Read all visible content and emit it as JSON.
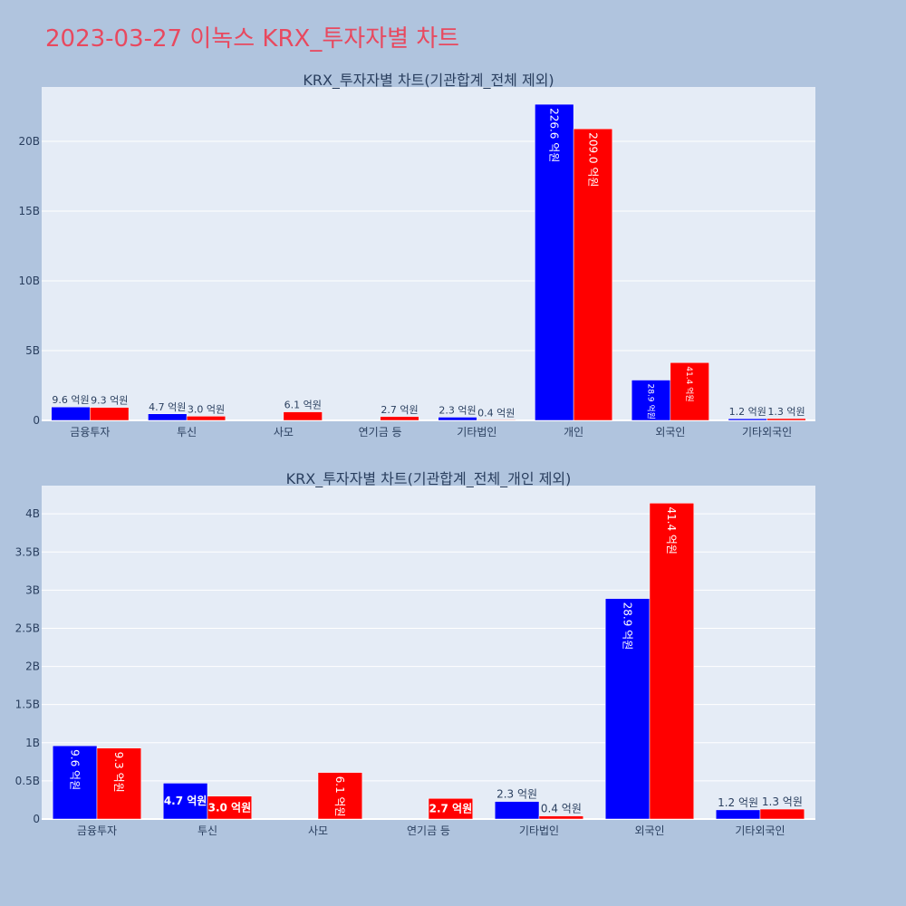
{
  "page": {
    "title": "2023-03-27 이녹스 KRX_투자자별 차트"
  },
  "colors": {
    "buy": "#0000ff",
    "sell": "#ff0000",
    "plot_bg": "#e5ecf6",
    "page_bg": "#b0c4de"
  },
  "chart_data": [
    {
      "type": "bar",
      "title": "KRX_투자자별 차트(기관합계_전체 제외)",
      "categories": [
        "금융투자",
        "투신",
        "사모",
        "연기금 등",
        "기타법인",
        "개인",
        "외국인",
        "기타외국인"
      ],
      "series": [
        {
          "values": [
            0.96,
            0.47,
            0,
            0,
            0.23,
            22.66,
            2.89,
            0.12
          ],
          "labels": [
            "9.6 억원",
            "4.7 억원",
            "",
            "",
            "2.3 억원",
            "226.6 억원",
            "28.9 억원",
            "1.2 억원"
          ]
        },
        {
          "values": [
            0.93,
            0.3,
            0.61,
            0.27,
            0.04,
            20.9,
            4.14,
            0.13
          ],
          "labels": [
            "9.3 억원",
            "3.0 억원",
            "6.1 억원",
            "2.7 억원",
            "0.4 억원",
            "209.0 억원",
            "41.4 억원",
            "1.3 억원"
          ]
        }
      ],
      "yticks": [
        0,
        5,
        10,
        15,
        20
      ],
      "ytick_labels": [
        "0",
        "5B",
        "10B",
        "15B",
        "20B"
      ],
      "ylim": [
        0,
        23.9
      ],
      "grid": true
    },
    {
      "type": "bar",
      "title": "KRX_투자자별 차트(기관합계_전체_개인 제외)",
      "categories": [
        "금융투자",
        "투신",
        "사모",
        "연기금 등",
        "기타법인",
        "외국인",
        "기타외국인"
      ],
      "series": [
        {
          "values": [
            0.96,
            0.47,
            0,
            0,
            0.23,
            2.89,
            0.12
          ],
          "labels": [
            "9.6 억원",
            "4.7 억원",
            "",
            "",
            "2.3 억원",
            "28.9 억원",
            "1.2 억원"
          ]
        },
        {
          "values": [
            0.93,
            0.3,
            0.61,
            0.27,
            0.04,
            4.14,
            0.13
          ],
          "labels": [
            "9.3 억원",
            "3.0 억원",
            "6.1 억원",
            "2.7 억원",
            "0.4 억원",
            "41.4 억원",
            "1.3 억원"
          ]
        }
      ],
      "yticks": [
        0,
        0.5,
        1,
        1.5,
        2,
        2.5,
        3,
        3.5,
        4
      ],
      "ytick_labels": [
        "0",
        "0.5B",
        "1B",
        "1.5B",
        "2B",
        "2.5B",
        "3B",
        "3.5B",
        "4B"
      ],
      "ylim": [
        0,
        4.37
      ],
      "grid": true
    }
  ]
}
